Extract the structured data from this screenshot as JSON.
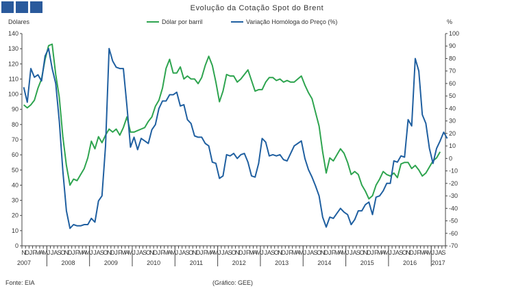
{
  "header": {
    "title": "Evolução da Cotação Spot do Brent"
  },
  "legend": [
    {
      "label": "Dólar por barril",
      "color": "#2ea44f"
    },
    {
      "label": "Variação Homóloga do Preço (%)",
      "color": "#1f5fa0"
    }
  ],
  "footer": {
    "source": "Fonte: EIA",
    "credit": "(Gráfico: GEE)"
  },
  "chart_data": {
    "type": "line",
    "title": "Evolução da Cotação Spot do Brent",
    "ylabel_left": "Dólares",
    "ylabel_right": "%",
    "ylim_left": [
      0,
      140
    ],
    "ylim_right": [
      -70,
      100
    ],
    "yticks_left": [
      0,
      10,
      20,
      30,
      40,
      50,
      60,
      70,
      80,
      90,
      100,
      110,
      120,
      130,
      140
    ],
    "yticks_right": [
      -70,
      -60,
      -50,
      -40,
      -30,
      -20,
      -10,
      0,
      10,
      20,
      30,
      40,
      50,
      60,
      70,
      80,
      90,
      100
    ],
    "x_start": "2007-11",
    "month_letters": [
      "N",
      "D",
      "J",
      "F",
      "M",
      "A",
      "M",
      "J",
      "J",
      "A",
      "S",
      "O",
      "N",
      "D",
      "J",
      "F",
      "M",
      "A",
      "M",
      "J",
      "J",
      "A",
      "S",
      "O",
      "N",
      "D",
      "J",
      "F",
      "M",
      "A",
      "M",
      "J",
      "J",
      "A",
      "S",
      "O",
      "N",
      "D",
      "J",
      "F",
      "M",
      "A",
      "M",
      "J",
      "J",
      "A",
      "S",
      "O",
      "N",
      "D",
      "J",
      "F",
      "M",
      "A",
      "M",
      "J",
      "J",
      "A",
      "S",
      "O",
      "N",
      "D",
      "J",
      "F",
      "M",
      "A",
      "M",
      "J",
      "J",
      "A",
      "S",
      "O",
      "N",
      "D",
      "J",
      "F",
      "M",
      "A",
      "M",
      "J",
      "J",
      "A",
      "S",
      "O",
      "N",
      "D",
      "J",
      "F",
      "M",
      "A",
      "M",
      "J",
      "J",
      "A",
      "S",
      "O",
      "N",
      "D",
      "J",
      "F",
      "M",
      "A",
      "M",
      "J",
      "J",
      "A",
      "S",
      "O",
      "N",
      "D",
      "J",
      "F",
      "M",
      "A",
      "M",
      "J",
      "J",
      "A",
      "S"
    ],
    "year_labels": [
      {
        "year": "2007",
        "month_index": 0
      },
      {
        "year": "2008",
        "month_index": 7
      },
      {
        "year": "2009",
        "month_index": 19
      },
      {
        "year": "2010",
        "month_index": 31
      },
      {
        "year": "2011",
        "month_index": 43
      },
      {
        "year": "2012",
        "month_index": 55
      },
      {
        "year": "2013",
        "month_index": 67
      },
      {
        "year": "2014",
        "month_index": 79
      },
      {
        "year": "2015",
        "month_index": 91
      },
      {
        "year": "2016",
        "month_index": 103
      },
      {
        "year": "2017",
        "month_index": 115
      }
    ],
    "series": [
      {
        "name": "Dólar por barril",
        "axis": "left",
        "color": "#2ea44f",
        "values": [
          93,
          91,
          93,
          96,
          104,
          110,
          123,
          132,
          133,
          113,
          98,
          72,
          53,
          40,
          44,
          43,
          47,
          51,
          58,
          69,
          64,
          72,
          68,
          73,
          77,
          75,
          77,
          73,
          78,
          85,
          75,
          75,
          76,
          77,
          78,
          82,
          85,
          92,
          96,
          104,
          117,
          123,
          114,
          114,
          118,
          110,
          112,
          110,
          110,
          107,
          111,
          119,
          125,
          119,
          108,
          95,
          102,
          113,
          112,
          112,
          108,
          110,
          113,
          116,
          109,
          102,
          103,
          103,
          108,
          111,
          111,
          109,
          110,
          108,
          109,
          108,
          108,
          110,
          112,
          106,
          101,
          97,
          88,
          79,
          62,
          48,
          58,
          56,
          60,
          64,
          61,
          55,
          47,
          49,
          47,
          40,
          36,
          31,
          33,
          40,
          44,
          49,
          47,
          46,
          48,
          45,
          54,
          55,
          55,
          51,
          53,
          50,
          46,
          48,
          52,
          56,
          58,
          62
        ]
      },
      {
        "name": "Variação Homóloga do Preço (%)",
        "axis": "right",
        "color": "#1f5fa0",
        "values": [
          57,
          45,
          72,
          65,
          67,
          62,
          82,
          88,
          72,
          60,
          30,
          -10,
          -42,
          -56,
          -53,
          -54,
          -54,
          -53,
          -53,
          -48,
          -51,
          -34,
          -30,
          10,
          88,
          78,
          73,
          72,
          72,
          42,
          9,
          17,
          7,
          16,
          14,
          12,
          23,
          27,
          40,
          46,
          46,
          51,
          51,
          53,
          42,
          43,
          31,
          28,
          18,
          17,
          17,
          12,
          10,
          -3,
          -4,
          -16,
          -14,
          3,
          2,
          4,
          0,
          3,
          4,
          -3,
          -14,
          -15,
          -4,
          16,
          13,
          2,
          3,
          2,
          3,
          -1,
          -2,
          4,
          10,
          12,
          14,
          0,
          -9,
          -15,
          -22,
          -30,
          -47,
          -55,
          -47,
          -48,
          -44,
          -40,
          -43,
          -45,
          -53,
          -49,
          -42,
          -42,
          -37,
          -35,
          -45,
          -31,
          -30,
          -26,
          -20,
          -20,
          -2,
          -3,
          2,
          1,
          31,
          26,
          80,
          70,
          35,
          28,
          8,
          -4,
          8,
          14,
          21,
          16
        ]
      }
    ]
  }
}
